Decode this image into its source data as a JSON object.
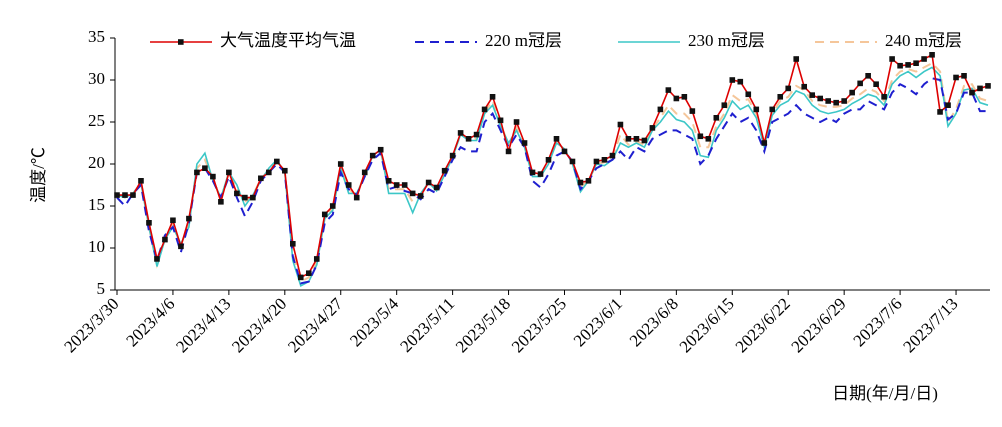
{
  "chart_data": {
    "type": "line",
    "ylabel": "温度/℃",
    "xlabel": "日期(年/月/日)",
    "legend": "top",
    "ylim": [
      5,
      35
    ],
    "yticks": [
      5,
      10,
      15,
      20,
      25,
      30,
      35
    ],
    "categories": [
      "2023/3/30",
      null,
      null,
      null,
      null,
      null,
      null,
      "2023/4/6",
      null,
      null,
      null,
      null,
      null,
      null,
      "2023/4/13",
      null,
      null,
      null,
      null,
      null,
      null,
      "2023/4/20",
      null,
      null,
      null,
      null,
      null,
      null,
      "2023/4/27",
      null,
      null,
      null,
      null,
      null,
      null,
      "2023/5/4",
      null,
      null,
      null,
      null,
      null,
      null,
      "2023/5/11",
      null,
      null,
      null,
      null,
      null,
      null,
      "2023/5/18",
      null,
      null,
      null,
      null,
      null,
      null,
      "2023/5/25",
      null,
      null,
      null,
      null,
      null,
      null,
      "2023/6/1",
      null,
      null,
      null,
      null,
      null,
      null,
      "2023/6/8",
      null,
      null,
      null,
      null,
      null,
      null,
      "2023/6/15",
      null,
      null,
      null,
      null,
      null,
      null,
      "2023/6/22",
      null,
      null,
      null,
      null,
      null,
      null,
      "2023/6/29",
      null,
      null,
      null,
      null,
      null,
      null,
      "2023/7/6",
      null,
      null,
      null,
      null,
      null,
      null,
      "2023/7/13",
      null,
      null,
      null,
      null
    ],
    "series": [
      {
        "name": "大气温度平均气温",
        "color": "#dd0000",
        "marker": "square",
        "dash": false,
        "values": [
          16.3,
          16.3,
          16.3,
          18,
          13,
          8.7,
          11,
          13.3,
          10.2,
          13.5,
          19,
          19.5,
          18.5,
          15.5,
          19,
          16.5,
          16,
          16,
          18.3,
          19,
          20.3,
          19.2,
          10.5,
          6.5,
          7,
          8.7,
          14,
          15,
          20,
          17.5,
          16,
          19,
          21,
          21.7,
          18,
          17.5,
          17.5,
          16.5,
          16.2,
          17.8,
          17.2,
          19.2,
          21,
          23.7,
          23,
          23.5,
          26.5,
          28,
          25.2,
          21.5,
          25,
          22.5,
          19,
          18.8,
          20.5,
          23,
          21.5,
          20.3,
          17.8,
          18,
          20.3,
          20.5,
          21,
          24.7,
          23,
          23,
          22.8,
          24.3,
          26.5,
          28.8,
          27.8,
          28,
          26.3,
          23.3,
          23,
          25.5,
          27,
          30,
          29.8,
          28.3,
          26.5,
          22.5,
          26.5,
          28,
          29,
          32.5,
          29.2,
          28.2,
          27.8,
          27.5,
          27.3,
          27.5,
          28.5,
          29.6,
          30.5,
          29.5,
          28,
          32.5,
          31.7,
          31.8,
          32,
          32.5,
          33,
          26.2,
          27,
          30.3,
          30.5,
          28.5,
          29,
          29.3
        ]
      },
      {
        "name": "220 m冠层",
        "color": "#1f1fcf",
        "marker": "none",
        "dash": true,
        "values": [
          16,
          15,
          16.5,
          17.5,
          12,
          8.5,
          11.5,
          12.5,
          9.5,
          13,
          19,
          19.5,
          18,
          16,
          18.5,
          16,
          13.8,
          15.5,
          18,
          19,
          20,
          19,
          9,
          5.8,
          6,
          8,
          13,
          14,
          19,
          17,
          16.3,
          18.5,
          20.5,
          21.3,
          17,
          17.3,
          16.8,
          16.5,
          15.8,
          17,
          16.5,
          18.5,
          20.5,
          22,
          21.5,
          21.5,
          25,
          26,
          24,
          22,
          23.5,
          22,
          18,
          17.2,
          18.8,
          21,
          21.5,
          20.3,
          17,
          18,
          19.5,
          20,
          20.5,
          21.5,
          20.5,
          22,
          21.5,
          23,
          23.5,
          24,
          24,
          23.5,
          23,
          20,
          21,
          23,
          24.5,
          26,
          25,
          25.5,
          24,
          21.5,
          25,
          25.5,
          26,
          27,
          26,
          25.5,
          25,
          25.5,
          25,
          26,
          26.5,
          26.5,
          27.5,
          27,
          26.5,
          28.5,
          29.5,
          29,
          28.3,
          29.5,
          30.2,
          30,
          25.3,
          26,
          28.5,
          28.5,
          26.3,
          26.3
        ]
      },
      {
        "name": "230 m冠层",
        "color": "#3cc7c7",
        "marker": "none",
        "dash": false,
        "values": [
          16.3,
          16,
          16.5,
          17.7,
          12.5,
          7.8,
          11,
          12.5,
          10.5,
          12.5,
          20,
          21.3,
          18,
          16,
          19,
          17.5,
          15,
          16.3,
          18,
          19.5,
          20.5,
          19,
          8.5,
          5.5,
          6,
          8,
          13.5,
          14.5,
          19.5,
          16.5,
          16.5,
          18.5,
          21,
          21.7,
          16.5,
          16.5,
          16.5,
          14.2,
          16.5,
          17.8,
          16.8,
          18.7,
          20.8,
          23.5,
          22.8,
          22.8,
          26,
          27,
          24.5,
          22.5,
          24,
          22,
          18.5,
          18.5,
          20,
          22.5,
          21.8,
          20,
          16.7,
          18,
          20,
          19.8,
          20.5,
          22.5,
          22,
          22.5,
          22,
          24,
          25,
          26.3,
          25.3,
          25,
          24,
          21,
          20.8,
          24,
          25.5,
          27.5,
          26.5,
          27,
          25.5,
          22,
          25.8,
          27,
          27.5,
          28.7,
          28.3,
          27,
          26.3,
          26,
          26.2,
          26.5,
          27.2,
          27.7,
          28.3,
          28,
          27,
          29.5,
          30.5,
          31,
          30.3,
          31,
          31.5,
          30.5,
          24.5,
          26,
          28.8,
          29,
          27.3,
          27
        ]
      },
      {
        "name": "240 m冠层",
        "color": "#f5c69a",
        "marker": "none",
        "dash": true,
        "values": [
          16.3,
          16.2,
          16.5,
          17.8,
          12.5,
          8,
          11,
          12.8,
          10.3,
          13,
          19.5,
          20.5,
          18.2,
          15.8,
          19,
          17,
          15.5,
          16.3,
          18.2,
          19.3,
          20.3,
          19.1,
          9.5,
          6,
          6.5,
          8.3,
          13.8,
          14.8,
          19.8,
          17,
          16.3,
          18.8,
          21,
          21.5,
          17,
          17,
          17,
          15.5,
          16.3,
          17.8,
          17,
          19,
          21,
          23.5,
          23,
          23,
          26.2,
          27.5,
          24.8,
          22.3,
          24.3,
          22.2,
          18.8,
          18.8,
          20.2,
          22.7,
          21.7,
          20.2,
          17.3,
          18,
          20,
          20.2,
          20.8,
          23.5,
          22.3,
          22.7,
          22.3,
          24.2,
          25.5,
          27,
          26,
          26,
          25,
          22,
          22,
          24.5,
          26,
          28.2,
          27.5,
          27.7,
          26,
          22.3,
          26,
          27.5,
          28,
          29.3,
          28.8,
          27.5,
          27,
          26.8,
          26.8,
          27,
          27.8,
          28.3,
          29,
          28.6,
          27.5,
          30,
          31,
          31.3,
          31,
          31.5,
          32,
          31,
          25,
          26.5,
          29.3,
          29.5,
          27.8,
          27.5
        ]
      }
    ]
  }
}
